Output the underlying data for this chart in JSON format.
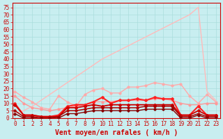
{
  "title": "",
  "xlabel": "Vent moyen/en rafales ( km/h )",
  "ylabel": "",
  "background_color": "#c8eef0",
  "grid_color": "#aadddd",
  "x_ticks": [
    0,
    1,
    2,
    3,
    4,
    5,
    6,
    7,
    8,
    9,
    10,
    11,
    12,
    13,
    14,
    15,
    16,
    17,
    18,
    19,
    20,
    21,
    22,
    23
  ],
  "y_ticks": [
    0,
    5,
    10,
    15,
    20,
    25,
    30,
    35,
    40,
    45,
    50,
    55,
    60,
    65,
    70,
    75
  ],
  "xlim": [
    -0.3,
    23.5
  ],
  "ylim": [
    0,
    78
  ],
  "lines": [
    {
      "x": [
        0,
        1,
        2,
        3,
        4,
        5,
        6,
        7,
        8,
        9,
        10,
        11,
        12,
        13,
        14,
        15,
        16,
        17,
        18,
        19,
        20,
        21,
        22,
        23
      ],
      "y": [
        3,
        5,
        8,
        12,
        16,
        20,
        24,
        28,
        32,
        36,
        40,
        43,
        46,
        49,
        52,
        55,
        58,
        61,
        64,
        67,
        70,
        75,
        18,
        12
      ],
      "color": "#ffbbbb",
      "lw": 1.0,
      "marker": null,
      "ms": 0
    },
    {
      "x": [
        0,
        1,
        2,
        3,
        4,
        5,
        6,
        7,
        8,
        9,
        10,
        11,
        12,
        13,
        14,
        15,
        16,
        17,
        18,
        19,
        20,
        21,
        22,
        23
      ],
      "y": [
        18,
        14,
        11,
        7,
        6,
        15,
        11,
        8,
        16,
        19,
        20,
        17,
        17,
        21,
        21,
        22,
        24,
        23,
        22,
        23,
        15,
        10,
        16,
        11
      ],
      "color": "#ffaaaa",
      "lw": 1.0,
      "marker": "o",
      "ms": 2.0
    },
    {
      "x": [
        0,
        1,
        2,
        3,
        4,
        5,
        6,
        7,
        8,
        9,
        10,
        11,
        12,
        13,
        14,
        15,
        16,
        17,
        18,
        19,
        20,
        21,
        22,
        23
      ],
      "y": [
        15,
        10,
        7,
        6,
        5,
        6,
        7,
        8,
        9,
        11,
        11,
        11,
        12,
        12,
        12,
        12,
        13,
        13,
        12,
        10,
        9,
        9,
        10,
        10
      ],
      "color": "#ff9999",
      "lw": 1.0,
      "marker": "o",
      "ms": 2.0
    },
    {
      "x": [
        0,
        1,
        2,
        3,
        4,
        5,
        6,
        7,
        8,
        9,
        10,
        11,
        12,
        13,
        14,
        15,
        16,
        17,
        18,
        19,
        20,
        21,
        22,
        23
      ],
      "y": [
        10,
        2,
        2,
        1,
        1,
        2,
        8,
        9,
        9,
        11,
        14,
        10,
        12,
        12,
        13,
        12,
        14,
        13,
        13,
        2,
        2,
        8,
        2,
        2
      ],
      "color": "#ff2222",
      "lw": 1.5,
      "marker": "D",
      "ms": 2.0
    },
    {
      "x": [
        0,
        1,
        2,
        3,
        4,
        5,
        6,
        7,
        8,
        9,
        10,
        11,
        12,
        13,
        14,
        15,
        16,
        17,
        18,
        19,
        20,
        21,
        22,
        23
      ],
      "y": [
        9,
        2,
        2,
        1,
        1,
        1,
        7,
        7,
        8,
        9,
        8,
        9,
        9,
        9,
        9,
        9,
        9,
        9,
        9,
        2,
        2,
        5,
        2,
        2
      ],
      "color": "#cc0000",
      "lw": 1.3,
      "marker": "D",
      "ms": 2.0
    },
    {
      "x": [
        0,
        1,
        2,
        3,
        4,
        5,
        6,
        7,
        8,
        9,
        10,
        11,
        12,
        13,
        14,
        15,
        16,
        17,
        18,
        19,
        20,
        21,
        22,
        23
      ],
      "y": [
        5,
        1,
        1,
        0,
        0,
        1,
        5,
        5,
        6,
        7,
        7,
        7,
        7,
        7,
        7,
        8,
        8,
        8,
        8,
        1,
        1,
        3,
        1,
        1
      ],
      "color": "#aa0000",
      "lw": 1.1,
      "marker": "D",
      "ms": 1.8
    },
    {
      "x": [
        0,
        1,
        2,
        3,
        4,
        5,
        6,
        7,
        8,
        9,
        10,
        11,
        12,
        13,
        14,
        15,
        16,
        17,
        18,
        19,
        20,
        21,
        22,
        23
      ],
      "y": [
        3,
        0,
        0,
        0,
        0,
        0,
        3,
        3,
        4,
        5,
        5,
        5,
        5,
        5,
        5,
        6,
        6,
        6,
        6,
        0,
        0,
        2,
        0,
        0
      ],
      "color": "#880000",
      "lw": 1.0,
      "marker": "D",
      "ms": 1.8
    }
  ],
  "font_color": "#cc0000",
  "tick_fontsize": 5.5,
  "label_fontsize": 7
}
